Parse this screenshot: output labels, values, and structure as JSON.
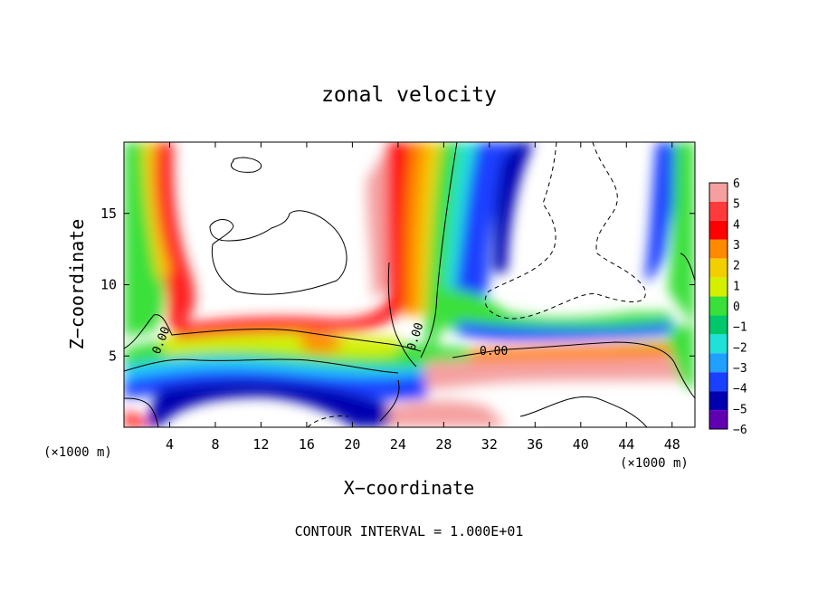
{
  "chart_data": {
    "type": "heatmap",
    "title": "zonal velocity",
    "xlabel": "X−coordinate",
    "ylabel": "Z−coordinate",
    "x_unit_left": "(×1000 m)",
    "x_unit_right": "(×1000 m)",
    "footer": "CONTOUR INTERVAL = 1.000E+01",
    "xlim": [
      0,
      50
    ],
    "ylim": [
      0,
      20
    ],
    "x_ticks": [
      4,
      8,
      12,
      16,
      20,
      24,
      28,
      32,
      36,
      40,
      44,
      48
    ],
    "x_tick_labels": [
      "4",
      "8",
      "12",
      "16",
      "20",
      "24",
      "28",
      "32",
      "36",
      "40",
      "44",
      "48"
    ],
    "y_ticks": [
      5,
      10,
      15
    ],
    "y_tick_labels": [
      "5",
      "10",
      "15"
    ],
    "colorbar": {
      "range": [
        -6,
        6
      ],
      "levels": [
        6,
        5,
        4,
        3,
        2,
        1,
        0,
        -1,
        -2,
        -3,
        -4,
        -5,
        -6
      ],
      "labels": [
        "6",
        "5",
        "4",
        "3",
        "2",
        "1",
        "0",
        "−1",
        "−2",
        "−3",
        "−4",
        "−5",
        "−6"
      ],
      "colors": [
        "#f5a0a0",
        "#ff3a3a",
        "#ff0000",
        "#ff8a00",
        "#f2d000",
        "#d4f000",
        "#3ae03a",
        "#00c86a",
        "#20e0d8",
        "#20a0ff",
        "#1a40ff",
        "#0000b0",
        "#6000b0"
      ]
    },
    "contour_labels": [
      "0.00",
      "0.00",
      "0.00"
    ],
    "grid": false,
    "legend": "colorbar-right"
  }
}
